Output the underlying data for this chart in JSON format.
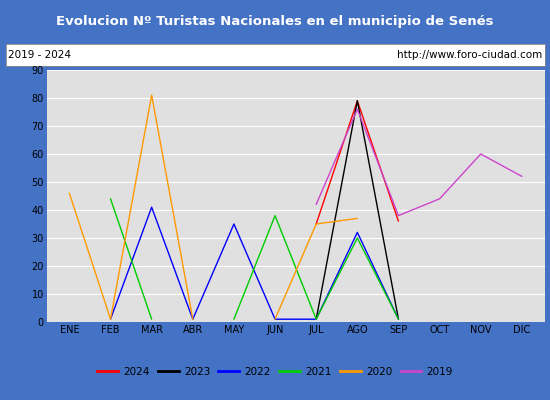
{
  "title": "Evolucion Nº Turistas Nacionales en el municipio de Senés",
  "subtitle_left": "2019 - 2024",
  "subtitle_right": "http://www.foro-ciudad.com",
  "months": [
    "ENE",
    "FEB",
    "MAR",
    "ABR",
    "MAY",
    "JUN",
    "JUL",
    "AGO",
    "SEP",
    "OCT",
    "NOV",
    "DIC"
  ],
  "series": {
    "2024": {
      "color": "#ff0000",
      "values": [
        null,
        null,
        null,
        null,
        null,
        null,
        35,
        79,
        36,
        null,
        null,
        null
      ]
    },
    "2023": {
      "color": "#000000",
      "values": [
        null,
        null,
        null,
        null,
        null,
        null,
        1,
        79,
        1,
        null,
        null,
        null
      ]
    },
    "2022": {
      "color": "#0000ff",
      "values": [
        null,
        1,
        41,
        1,
        35,
        1,
        1,
        32,
        1,
        null,
        null,
        null
      ]
    },
    "2021": {
      "color": "#00cc00",
      "values": [
        null,
        44,
        1,
        null,
        1,
        38,
        1,
        30,
        1,
        null,
        null,
        null
      ]
    },
    "2020": {
      "color": "#ff9900",
      "values": [
        46,
        1,
        81,
        1,
        null,
        1,
        35,
        37,
        null,
        null,
        null,
        null
      ]
    },
    "2019": {
      "color": "#cc44cc",
      "values": [
        null,
        null,
        null,
        null,
        null,
        null,
        42,
        76,
        38,
        44,
        60,
        52
      ]
    }
  },
  "ylim": [
    0,
    90
  ],
  "yticks": [
    0,
    10,
    20,
    30,
    40,
    50,
    60,
    70,
    80,
    90
  ],
  "title_bg_color": "#4472c4",
  "title_color": "#ffffff",
  "plot_bg_color": "#e0e0e0",
  "outer_bg_color": "#4472c4",
  "inner_bg_color": "#ffffff",
  "grid_color": "#ffffff",
  "legend_years": [
    "2024",
    "2023",
    "2022",
    "2021",
    "2020",
    "2019"
  ]
}
